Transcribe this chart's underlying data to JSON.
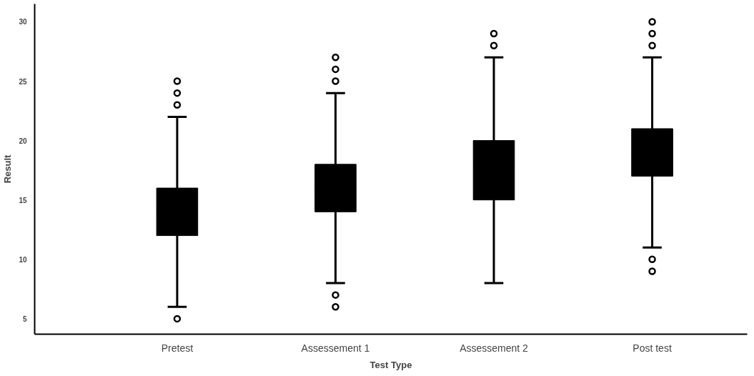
{
  "chart_data": {
    "type": "box",
    "xlabel": "Test Type",
    "ylabel": "Result",
    "categories": [
      "Pretest",
      "Assessement 1",
      "Assessement 2",
      "Post test"
    ],
    "boxes": [
      {
        "low": 6,
        "q1": 12,
        "median": 14,
        "q3": 16,
        "high": 22,
        "outliers": [
          5,
          23,
          24,
          25
        ]
      },
      {
        "low": 8,
        "q1": 14,
        "median": 16,
        "q3": 18,
        "high": 24,
        "outliers": [
          6,
          7,
          25,
          26,
          27
        ]
      },
      {
        "low": 8,
        "q1": 15,
        "median": 18,
        "q3": 20,
        "high": 27,
        "outliers": [
          28,
          29
        ]
      },
      {
        "low": 11,
        "q1": 17,
        "median": 19,
        "q3": 21,
        "high": 27,
        "outliers": [
          9,
          10,
          28,
          29,
          30
        ]
      }
    ],
    "color": "#000000",
    "ylim": [
      3.7,
      31.5
    ],
    "yticks": [
      5,
      10,
      15,
      20,
      25,
      30
    ],
    "grid": false
  }
}
